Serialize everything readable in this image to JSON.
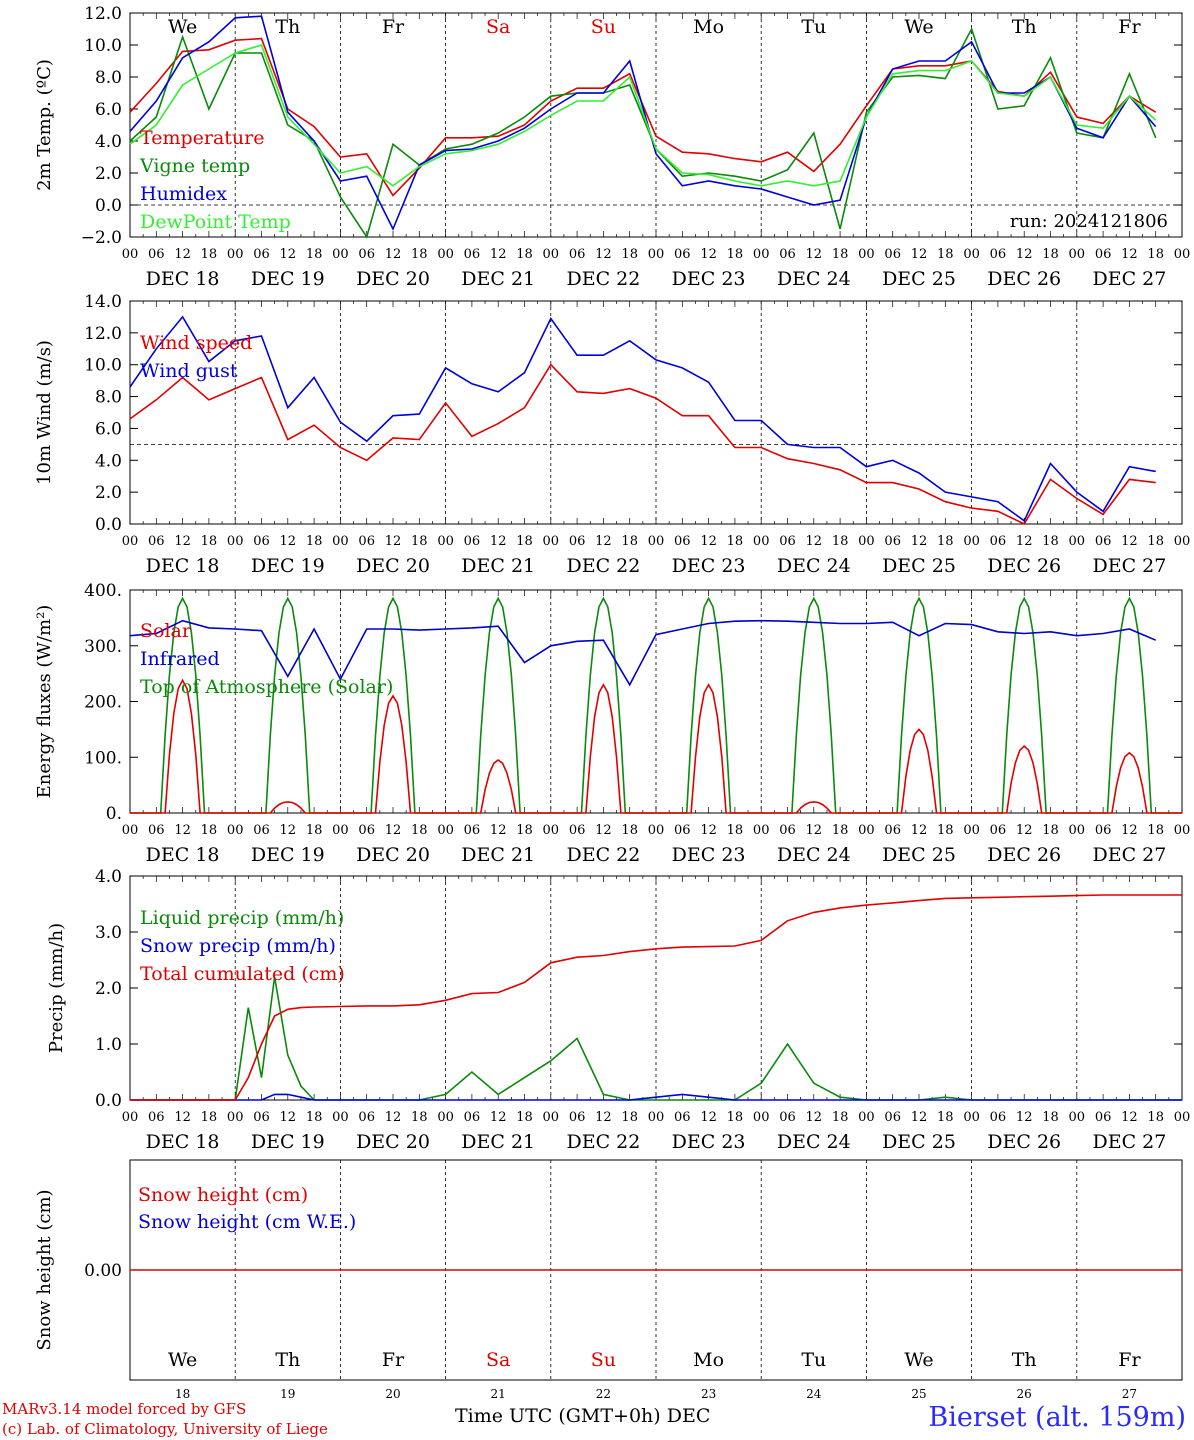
{
  "chart_data": [
    {
      "type": "line",
      "ylabel": "2m Temp. (ºC)",
      "ylim": [
        -2,
        12
      ],
      "yticks": [
        "−2.0",
        "0.0",
        "2.0",
        "4.0",
        "6.0",
        "8.0",
        "10.0",
        "12.0"
      ],
      "reference_line": 0,
      "x_hours": [
        0,
        6,
        12,
        18,
        24,
        30,
        36,
        42,
        48,
        54,
        60,
        66,
        72,
        78,
        84,
        90,
        96,
        102,
        108,
        114,
        120,
        126,
        132,
        138,
        144,
        150,
        156,
        162,
        168,
        174,
        180,
        186,
        192,
        198,
        204,
        210,
        216,
        222,
        228,
        234
      ],
      "annotation": "run: 2024121806",
      "series": [
        {
          "name": "Temperature",
          "color": "#e00000",
          "values": [
            5.8,
            7.6,
            9.6,
            9.7,
            10.3,
            10.4,
            6.0,
            4.9,
            3.0,
            3.2,
            0.6,
            2.3,
            4.2,
            4.2,
            4.3,
            5.0,
            6.5,
            7.3,
            7.3,
            8.2,
            4.3,
            3.3,
            3.2,
            2.9,
            2.7,
            3.3,
            2.1,
            3.8,
            6.2,
            8.5,
            8.7,
            8.7,
            9.0,
            7.1,
            6.8,
            8.3,
            5.5,
            5.1,
            6.8,
            5.8
          ]
        },
        {
          "name": "Vigne temp",
          "color": "#0a8a0a",
          "values": [
            4.0,
            5.5,
            10.5,
            6.0,
            9.5,
            9.5,
            5.0,
            4.0,
            0.5,
            -2.0,
            3.8,
            2.5,
            3.5,
            3.8,
            4.5,
            5.5,
            6.8,
            7.0,
            7.0,
            7.5,
            3.5,
            1.8,
            2.0,
            1.8,
            1.5,
            2.2,
            4.5,
            -1.5,
            5.8,
            8.0,
            8.1,
            7.9,
            11.0,
            6.0,
            6.2,
            9.2,
            4.5,
            4.2,
            8.2,
            4.2
          ]
        },
        {
          "name": "Humidex",
          "color": "#0000dd",
          "values": [
            4.6,
            6.5,
            9.2,
            10.2,
            11.7,
            11.8,
            5.8,
            4.0,
            1.5,
            1.8,
            -1.5,
            2.5,
            3.4,
            3.5,
            4.0,
            4.8,
            6.0,
            7.0,
            7.0,
            9.0,
            3.2,
            1.2,
            1.5,
            1.2,
            1.0,
            0.5,
            0.0,
            0.3,
            5.5,
            8.5,
            9.0,
            9.0,
            10.2,
            7.0,
            7.0,
            8.0,
            4.8,
            4.2,
            6.8,
            4.9
          ]
        },
        {
          "name": "DewPoint Temp",
          "color": "#33ee33",
          "values": [
            3.8,
            5.0,
            7.5,
            8.5,
            9.5,
            10.0,
            5.5,
            3.8,
            2.0,
            2.4,
            1.2,
            2.4,
            3.2,
            3.4,
            3.8,
            4.6,
            5.6,
            6.5,
            6.5,
            8.0,
            3.5,
            2.0,
            1.9,
            1.5,
            1.2,
            1.5,
            1.2,
            1.5,
            5.5,
            8.2,
            8.4,
            8.4,
            9.0,
            7.0,
            6.8,
            8.0,
            5.0,
            4.8,
            6.8,
            5.3
          ]
        }
      ]
    },
    {
      "type": "line",
      "ylabel": "10m Wind (m/s)",
      "ylim": [
        0,
        14
      ],
      "yticks": [
        "0.0",
        "2.0",
        "4.0",
        "6.0",
        "8.0",
        "10.0",
        "12.0",
        "14.0"
      ],
      "reference_line": 5,
      "x_hours": [
        0,
        6,
        12,
        18,
        24,
        30,
        36,
        42,
        48,
        54,
        60,
        66,
        72,
        78,
        84,
        90,
        96,
        102,
        108,
        114,
        120,
        126,
        132,
        138,
        144,
        150,
        156,
        162,
        168,
        174,
        180,
        186,
        192,
        198,
        204,
        210,
        216,
        222,
        228,
        234
      ],
      "series": [
        {
          "name": "Wind speed",
          "color": "#e00000",
          "values": [
            6.6,
            7.8,
            9.2,
            7.8,
            8.5,
            9.2,
            5.3,
            6.2,
            4.8,
            4.0,
            5.4,
            5.3,
            7.6,
            5.5,
            6.3,
            7.3,
            10.0,
            8.3,
            8.2,
            8.5,
            7.9,
            6.8,
            6.8,
            4.8,
            4.8,
            4.1,
            3.8,
            3.4,
            2.6,
            2.6,
            2.2,
            1.4,
            1.0,
            0.8,
            0.0,
            2.8,
            1.6,
            0.6,
            2.8,
            2.6
          ]
        },
        {
          "name": "Wind gust",
          "color": "#0000dd",
          "values": [
            8.6,
            11.0,
            13.0,
            10.2,
            11.5,
            11.8,
            7.3,
            9.2,
            6.4,
            5.2,
            6.8,
            6.9,
            9.8,
            8.8,
            8.3,
            9.5,
            12.9,
            10.6,
            10.6,
            11.5,
            10.3,
            9.8,
            8.9,
            6.5,
            6.5,
            5.0,
            4.8,
            4.8,
            3.6,
            4.0,
            3.2,
            2.0,
            1.7,
            1.4,
            0.2,
            3.8,
            2.0,
            0.8,
            3.6,
            3.3
          ]
        }
      ]
    },
    {
      "type": "line",
      "ylabel": "Energy fluxes (W/m²)",
      "ylim": [
        0,
        400
      ],
      "yticks": [
        "0.",
        "100.",
        "200.",
        "300.",
        "400."
      ],
      "diurnal_peak_hours": [
        12,
        36,
        60,
        84,
        108,
        132,
        156,
        180,
        204,
        228
      ],
      "series": [
        {
          "name": "Solar",
          "color": "#e00000",
          "daily_peaks": [
            238,
            20,
            210,
            95,
            230,
            230,
            20,
            150,
            120,
            108
          ]
        },
        {
          "name": "Infrared",
          "color": "#0000cc",
          "values": [
            318,
            322,
            345,
            332,
            330,
            327,
            245,
            330,
            240,
            330,
            330,
            328,
            330,
            332,
            335,
            270,
            300,
            308,
            310,
            230,
            320,
            330,
            340,
            344,
            345,
            344,
            342,
            340,
            340,
            342,
            318,
            340,
            338,
            325,
            322,
            325,
            318,
            322,
            330,
            310
          ]
        },
        {
          "name": "Top of Atmosphere (Solar)",
          "color": "#0a8a0a",
          "daily_peaks": [
            385,
            385,
            385,
            385,
            385,
            385,
            385,
            385,
            385,
            385
          ]
        }
      ]
    },
    {
      "type": "line",
      "ylabel": "Precip (mm/h)",
      "ylim": [
        0,
        4
      ],
      "yticks": [
        "0.0",
        "1.0",
        "2.0",
        "3.0",
        "4.0"
      ],
      "x_hours": [
        0,
        6,
        12,
        18,
        24,
        27,
        30,
        33,
        36,
        39,
        42,
        48,
        54,
        60,
        66,
        72,
        78,
        84,
        90,
        96,
        102,
        108,
        114,
        120,
        126,
        132,
        138,
        144,
        150,
        156,
        162,
        168,
        174,
        180,
        186,
        192,
        198,
        204,
        210,
        216,
        222,
        228,
        234,
        240
      ],
      "series": [
        {
          "name": "Liquid precip (mm/h)",
          "color": "#0a8a0a",
          "values": [
            0,
            0,
            0,
            0,
            0,
            1.65,
            0.4,
            2.2,
            0.8,
            0.25,
            0,
            0,
            0,
            0,
            0,
            0.1,
            0.5,
            0.1,
            0.4,
            0.7,
            1.1,
            0.1,
            0,
            0,
            0,
            0,
            0,
            0.3,
            1.0,
            0.3,
            0.05,
            0,
            0,
            0,
            0.05,
            0,
            0,
            0,
            0,
            0,
            0,
            0,
            0,
            0
          ]
        },
        {
          "name": "Snow precip (mm/h)",
          "color": "#0000dd",
          "values": [
            0,
            0,
            0,
            0,
            0,
            0,
            0,
            0.1,
            0.1,
            0.05,
            0,
            0,
            0,
            0,
            0,
            0,
            0,
            0,
            0,
            0,
            0,
            0,
            0,
            0.05,
            0.1,
            0.05,
            0,
            0,
            0,
            0,
            0,
            0,
            0,
            0,
            0,
            0,
            0,
            0,
            0,
            0,
            0,
            0,
            0,
            0
          ]
        },
        {
          "name": "Total cumulated (cm)",
          "color": "#e00000",
          "values": [
            0,
            0,
            0,
            0,
            0,
            0.4,
            1.0,
            1.5,
            1.62,
            1.65,
            1.66,
            1.67,
            1.68,
            1.68,
            1.7,
            1.78,
            1.9,
            1.92,
            2.1,
            2.45,
            2.55,
            2.58,
            2.65,
            2.7,
            2.73,
            2.74,
            2.75,
            2.85,
            3.2,
            3.35,
            3.43,
            3.48,
            3.52,
            3.56,
            3.6,
            3.61,
            3.62,
            3.63,
            3.64,
            3.65,
            3.66,
            3.66,
            3.66,
            3.66
          ]
        }
      ]
    },
    {
      "type": "line",
      "ylabel": "Snow height (cm)",
      "ytick": "0.00",
      "series": [
        {
          "name": "Snow height (cm)",
          "color": "#e00000",
          "constant": 0
        },
        {
          "name": "Snow height (cm W.E.)",
          "color": "#0000dd",
          "constant": 0
        }
      ]
    }
  ],
  "day_labels": [
    "We",
    "Th",
    "Fr",
    "Sa",
    "Su",
    "Mo",
    "Tu",
    "We",
    "Th",
    "Fr"
  ],
  "weekend_indices": [
    3,
    4
  ],
  "date_labels": [
    "DEC 18",
    "DEC 19",
    "DEC 20",
    "DEC 21",
    "DEC 22",
    "DEC 23",
    "DEC 24",
    "DEC 25",
    "DEC 26",
    "DEC 27"
  ],
  "day_numbers": [
    "18",
    "19",
    "20",
    "21",
    "22",
    "23",
    "24",
    "25",
    "26",
    "27"
  ],
  "hour_ticks": [
    "00",
    "06",
    "12",
    "18"
  ],
  "final_tick": "00",
  "colors": {
    "weekend": "#e00000",
    "axis": "#000000",
    "footer_credit": "#e00000",
    "station": "#2a2aff"
  },
  "footer": {
    "model": "MARv3.14 model forced by GFS",
    "credit": "(c) Lab. of Climatology, University of Liege",
    "xlabel": "Time UTC (GMT+0h)",
    "month": "DEC",
    "station": "Bierset (alt. 159m)"
  }
}
